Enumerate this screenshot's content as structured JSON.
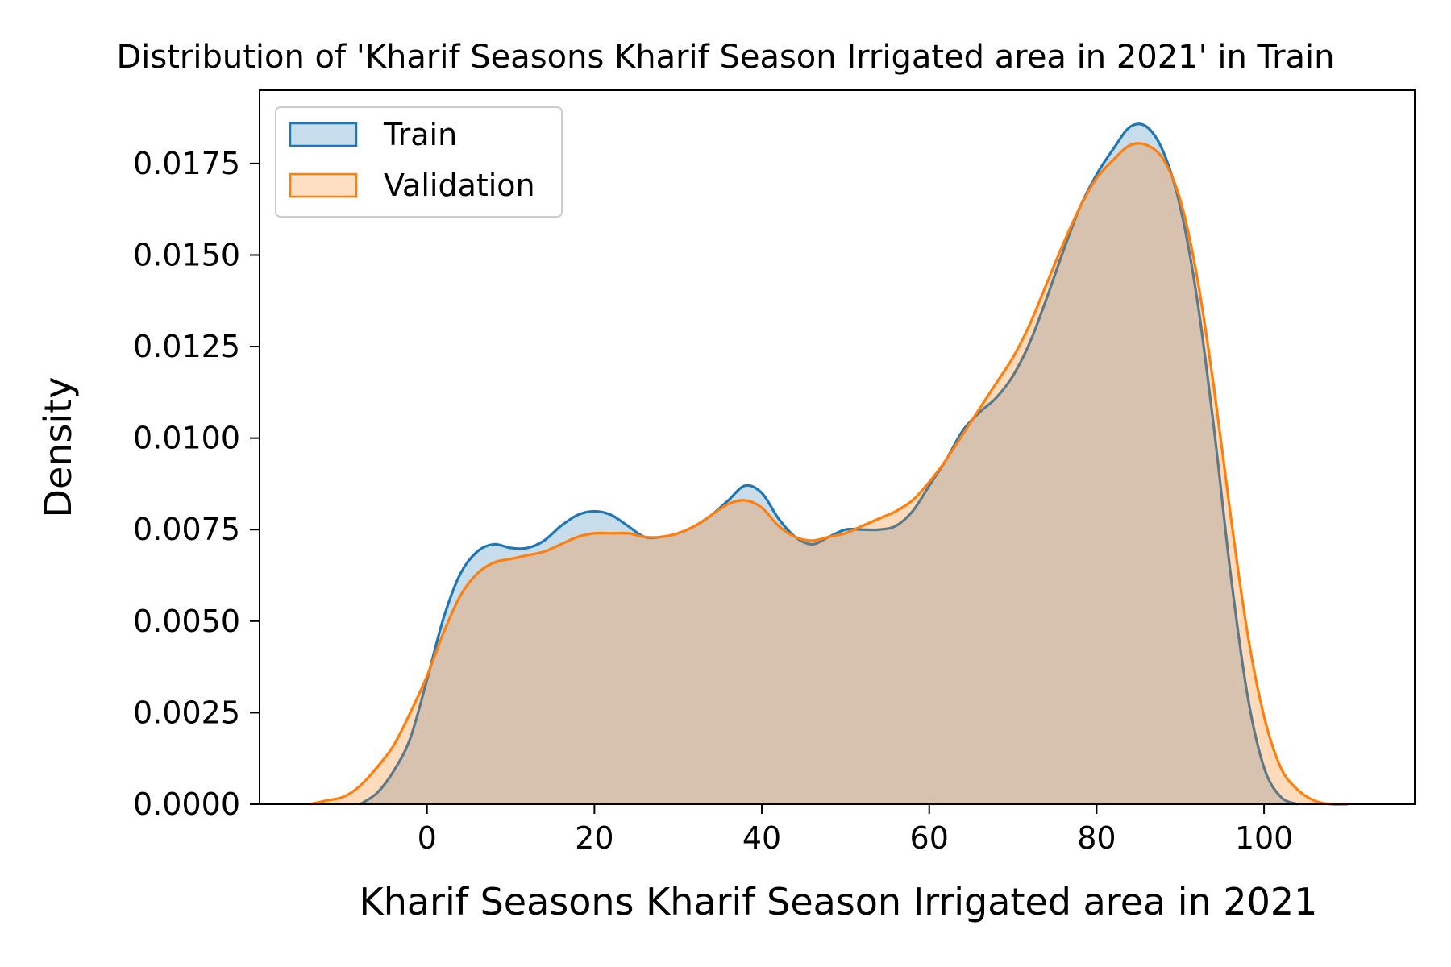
{
  "chart_data": {
    "type": "area",
    "title": "Distribution of 'Kharif Seasons Kharif Season Irrigated area in 2021' in Train",
    "xlabel": "Kharif Seasons Kharif Season Irrigated area in 2021",
    "ylabel": "Density",
    "xlim": [
      -20,
      118
    ],
    "ylim": [
      0,
      0.0195
    ],
    "xticks": [
      0,
      20,
      40,
      60,
      80,
      100
    ],
    "xtick_labels": [
      "0",
      "20",
      "40",
      "60",
      "80",
      "100"
    ],
    "yticks": [
      0,
      0.0025,
      0.005,
      0.0075,
      0.01,
      0.0125,
      0.015,
      0.0175
    ],
    "ytick_labels": [
      "0.0000",
      "0.0025",
      "0.0050",
      "0.0075",
      "0.0100",
      "0.0125",
      "0.0150",
      "0.0175"
    ],
    "grid": false,
    "legend": {
      "position": "top-left",
      "entries": [
        "Train",
        "Validation"
      ]
    },
    "series": [
      {
        "name": "Train",
        "color": "#1f77b4",
        "points": [
          [
            -8,
            0.0
          ],
          [
            -6,
            0.0003
          ],
          [
            -4,
            0.0009
          ],
          [
            -2,
            0.0018
          ],
          [
            0,
            0.0034
          ],
          [
            2,
            0.0051
          ],
          [
            4,
            0.0063
          ],
          [
            6,
            0.0069
          ],
          [
            8,
            0.0071
          ],
          [
            10,
            0.007
          ],
          [
            12,
            0.007
          ],
          [
            14,
            0.0072
          ],
          [
            16,
            0.0076
          ],
          [
            18,
            0.0079
          ],
          [
            20,
            0.008
          ],
          [
            22,
            0.0079
          ],
          [
            24,
            0.0076
          ],
          [
            26,
            0.0073
          ],
          [
            28,
            0.0073
          ],
          [
            30,
            0.0074
          ],
          [
            32,
            0.0076
          ],
          [
            34,
            0.0079
          ],
          [
            36,
            0.0083
          ],
          [
            38,
            0.0087
          ],
          [
            40,
            0.0085
          ],
          [
            42,
            0.0078
          ],
          [
            44,
            0.0073
          ],
          [
            46,
            0.0071
          ],
          [
            48,
            0.0073
          ],
          [
            50,
            0.0075
          ],
          [
            52,
            0.0075
          ],
          [
            54,
            0.0075
          ],
          [
            56,
            0.0076
          ],
          [
            58,
            0.008
          ],
          [
            60,
            0.0087
          ],
          [
            62,
            0.0094
          ],
          [
            64,
            0.0102
          ],
          [
            66,
            0.0107
          ],
          [
            68,
            0.0111
          ],
          [
            70,
            0.0117
          ],
          [
            72,
            0.0126
          ],
          [
            74,
            0.0138
          ],
          [
            76,
            0.0151
          ],
          [
            78,
            0.0163
          ],
          [
            80,
            0.0172
          ],
          [
            82,
            0.0179
          ],
          [
            84,
            0.0185
          ],
          [
            86,
            0.0185
          ],
          [
            88,
            0.0178
          ],
          [
            90,
            0.0163
          ],
          [
            92,
            0.0138
          ],
          [
            94,
            0.0103
          ],
          [
            96,
            0.0063
          ],
          [
            98,
            0.003
          ],
          [
            100,
            0.001
          ],
          [
            102,
            0.0002
          ],
          [
            104,
            0.0
          ]
        ]
      },
      {
        "name": "Validation",
        "color": "#ff7f0e",
        "points": [
          [
            -14,
            0.0
          ],
          [
            -12,
            0.0001
          ],
          [
            -10,
            0.0002
          ],
          [
            -8,
            0.0005
          ],
          [
            -6,
            0.001
          ],
          [
            -4,
            0.0016
          ],
          [
            -2,
            0.0025
          ],
          [
            0,
            0.0035
          ],
          [
            2,
            0.0047
          ],
          [
            4,
            0.0057
          ],
          [
            6,
            0.0063
          ],
          [
            8,
            0.0066
          ],
          [
            10,
            0.0067
          ],
          [
            12,
            0.0068
          ],
          [
            14,
            0.0069
          ],
          [
            16,
            0.0071
          ],
          [
            18,
            0.0073
          ],
          [
            20,
            0.0074
          ],
          [
            22,
            0.0074
          ],
          [
            24,
            0.0074
          ],
          [
            26,
            0.0073
          ],
          [
            28,
            0.0073
          ],
          [
            30,
            0.0074
          ],
          [
            32,
            0.0076
          ],
          [
            34,
            0.0079
          ],
          [
            36,
            0.0082
          ],
          [
            38,
            0.0083
          ],
          [
            40,
            0.0081
          ],
          [
            42,
            0.0076
          ],
          [
            44,
            0.0073
          ],
          [
            46,
            0.0072
          ],
          [
            48,
            0.0073
          ],
          [
            50,
            0.0074
          ],
          [
            52,
            0.0076
          ],
          [
            54,
            0.0078
          ],
          [
            56,
            0.008
          ],
          [
            58,
            0.0083
          ],
          [
            60,
            0.0088
          ],
          [
            62,
            0.0094
          ],
          [
            64,
            0.0101
          ],
          [
            66,
            0.0108
          ],
          [
            68,
            0.0115
          ],
          [
            70,
            0.0122
          ],
          [
            72,
            0.0131
          ],
          [
            74,
            0.0142
          ],
          [
            76,
            0.0153
          ],
          [
            78,
            0.0163
          ],
          [
            80,
            0.0171
          ],
          [
            82,
            0.0176
          ],
          [
            84,
            0.018
          ],
          [
            86,
            0.018
          ],
          [
            88,
            0.0176
          ],
          [
            90,
            0.0165
          ],
          [
            92,
            0.0144
          ],
          [
            94,
            0.0114
          ],
          [
            96,
            0.0079
          ],
          [
            98,
            0.0047
          ],
          [
            100,
            0.0024
          ],
          [
            102,
            0.001
          ],
          [
            104,
            0.0004
          ],
          [
            106,
            0.0001
          ],
          [
            108,
            0.0
          ],
          [
            110,
            0.0
          ]
        ]
      }
    ]
  }
}
